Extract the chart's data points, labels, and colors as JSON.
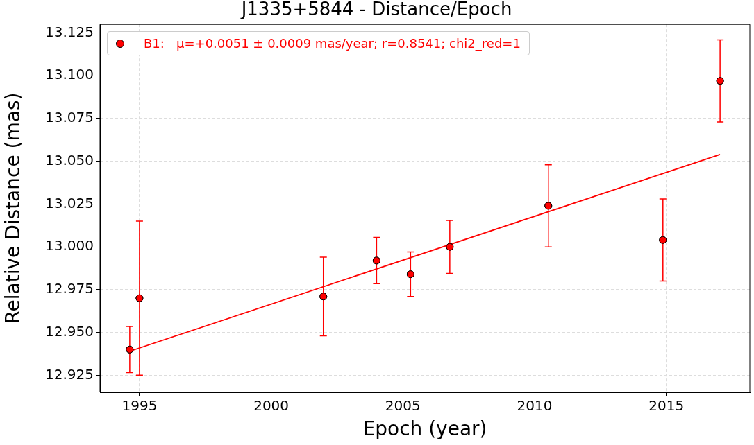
{
  "chart_data": {
    "type": "scatter",
    "title": "J1335+5844 - Distance/Epoch",
    "xlabel": "Epoch (year)",
    "ylabel": "Relative Distance (mas)",
    "series": [
      {
        "name": "B1:   μ=+0.0051 ± 0.0009 mas/year; r=0.8541; chi2_red=1",
        "color": "#ff0000",
        "x": [
          1994.63,
          1995.0,
          2001.98,
          2004.0,
          2005.29,
          2006.78,
          2010.52,
          2014.87,
          2017.04
        ],
        "values": [
          12.94,
          12.97,
          12.971,
          12.992,
          12.984,
          13.0,
          13.024,
          13.004,
          13.097
        ],
        "errors": [
          0.0135,
          0.045,
          0.023,
          0.0135,
          0.013,
          0.0155,
          0.024,
          0.024,
          0.024
        ],
        "marker": "circle"
      },
      {
        "type": "line",
        "color": "#ff0000",
        "x": [
          1994.63,
          2017.04
        ],
        "values": [
          12.939,
          13.054
        ]
      }
    ],
    "xlim": [
      1993.5,
      2018.17
    ],
    "xticks": [
      1995,
      2000,
      2005,
      2010,
      2015
    ],
    "ylim": [
      12.915,
      13.13
    ],
    "yticks": [
      {
        "value": 12.925,
        "label": "12.925"
      },
      {
        "value": 12.95,
        "label": "12.950"
      },
      {
        "value": 12.975,
        "label": "12.975"
      },
      {
        "value": 13,
        "label": "13.000"
      },
      {
        "value": 13.025,
        "label": "13.025"
      },
      {
        "value": 13.05,
        "label": "13.050"
      },
      {
        "value": 13.075,
        "label": "13.075"
      },
      {
        "value": 13.1,
        "label": "13.100"
      },
      {
        "value": 13.125,
        "label": "13.125"
      }
    ],
    "grid": true,
    "legend": "top left",
    "line_style": "solid"
  }
}
